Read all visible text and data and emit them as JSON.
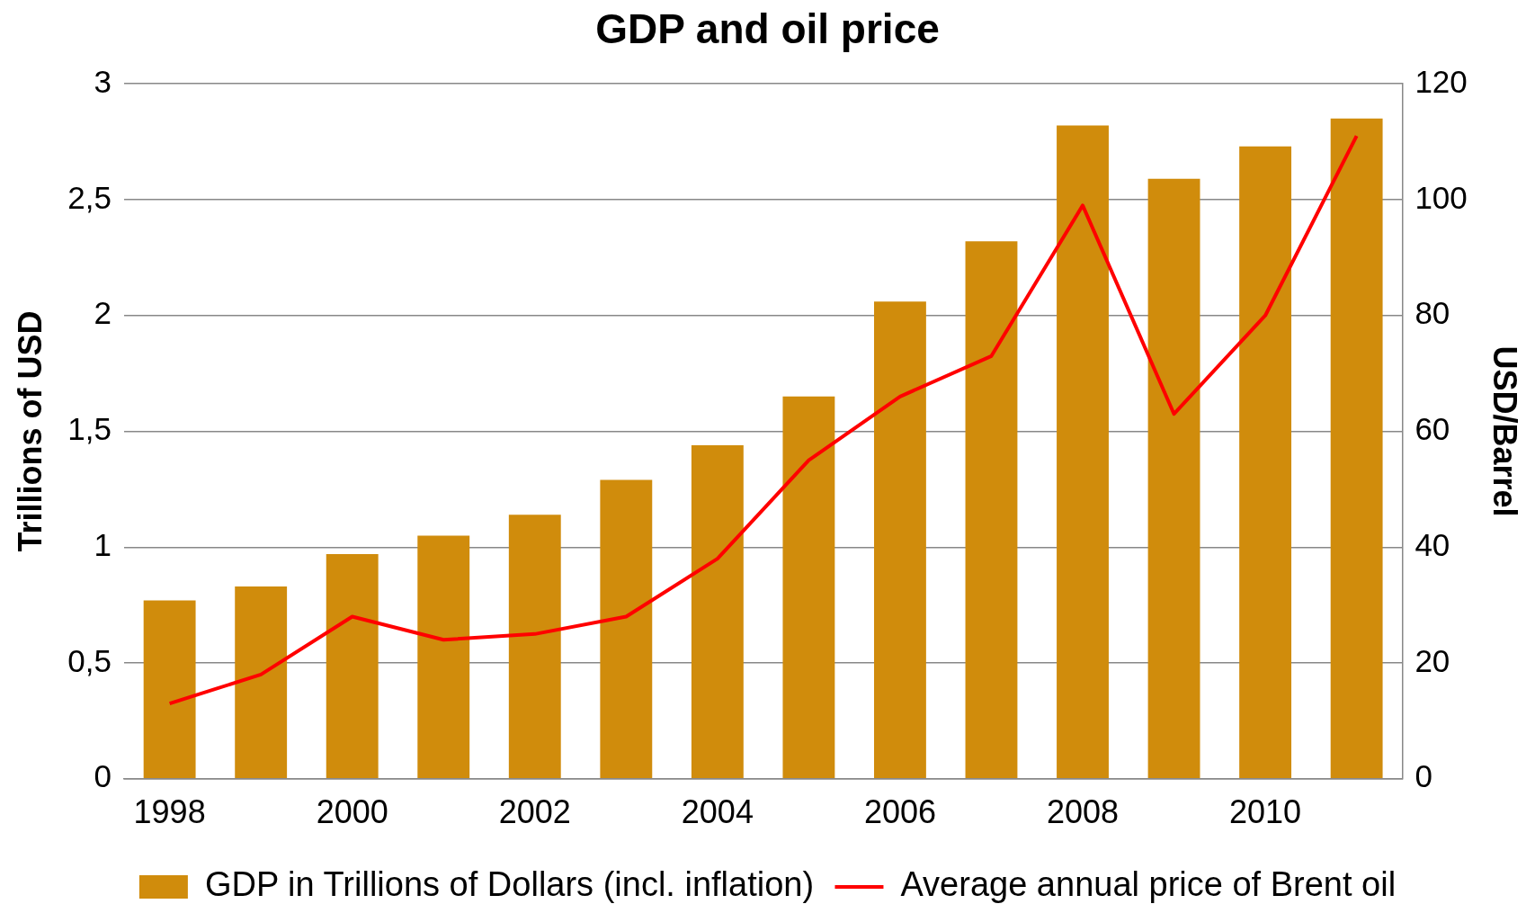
{
  "chart_data": {
    "type": "bar",
    "title": "GDP and oil price",
    "ylabel": "Trillions of USD",
    "y2label": "USD/Barrel",
    "categories": [
      "1998",
      null,
      "2000",
      null,
      "2002",
      null,
      "2004",
      null,
      "2006",
      null,
      "2008",
      null,
      "2010",
      null
    ],
    "series": [
      {
        "name": "GDP in Trillions of Dollars (incl. inflation)",
        "color": "#d08c0c",
        "values": [
          0.77,
          0.83,
          0.97,
          1.05,
          1.14,
          1.29,
          1.44,
          1.65,
          2.06,
          2.32,
          2.82,
          2.59,
          2.73,
          2.85
        ]
      },
      {
        "name": "Average annual price of Brent oil",
        "type": "line",
        "axis": "y2",
        "color": "#ff0000",
        "values": [
          13,
          18,
          28,
          24,
          25,
          28,
          38,
          55,
          66,
          73,
          99,
          63,
          80,
          111
        ]
      }
    ],
    "ylim": [
      0,
      3
    ],
    "yticks": [
      0,
      {
        "value": 0.5,
        "label": "0,5"
      },
      1,
      {
        "value": 1.5,
        "label": "1,5"
      },
      2,
      {
        "value": 2.5,
        "label": "2,5"
      },
      3
    ],
    "y2lim": [
      0,
      120
    ],
    "y2ticks": [
      0,
      20,
      40,
      60,
      80,
      100,
      120
    ],
    "grid": "y",
    "legend": "bottom",
    "marker": "none",
    "line_style": "solid"
  }
}
